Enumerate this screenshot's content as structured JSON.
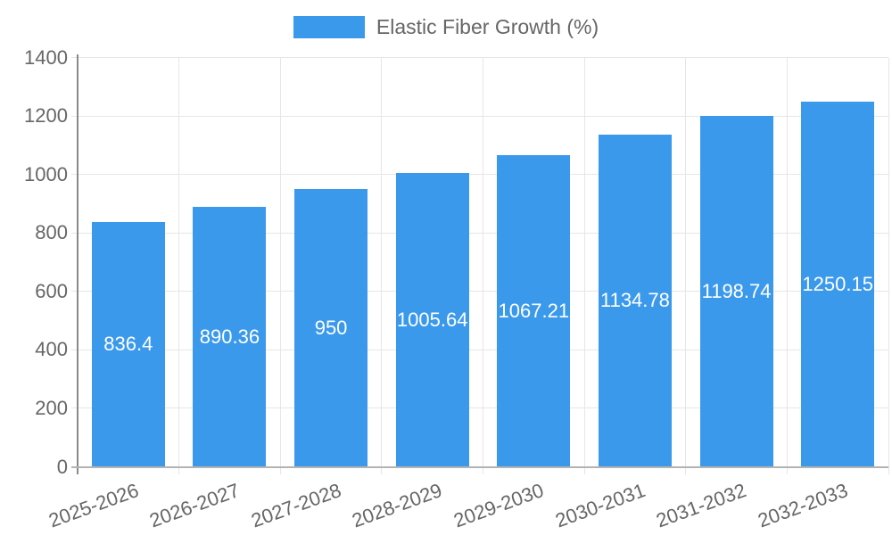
{
  "chart_data": {
    "type": "bar",
    "title": "Elastic Fiber Growth (%)",
    "legend_position": "top",
    "categories": [
      "2025-2026",
      "2026-2027",
      "2027-2028",
      "2028-2029",
      "2029-2030",
      "2030-2031",
      "2031-2032",
      "2032-2033"
    ],
    "series": [
      {
        "name": "Elastic Fiber Growth (%)",
        "values": [
          836.4,
          890.36,
          950,
          1005.64,
          1067.21,
          1134.78,
          1198.74,
          1250.15
        ]
      }
    ],
    "value_labels": [
      "836.4",
      "890.36",
      "950",
      "1005.64",
      "1067.21",
      "1134.78",
      "1198.74",
      "1250.15"
    ],
    "xlabel": "",
    "ylabel": "",
    "ylim": [
      0,
      1400
    ],
    "yticks": [
      0,
      200,
      400,
      600,
      800,
      1000,
      1200,
      1400
    ],
    "grid": true
  },
  "colors": {
    "bar": "#3b99ec",
    "grid": "#e6e6e6",
    "axis_y": "#8a8a8a",
    "axis_x": "#b3b3b3",
    "tick": "#d9d9d9",
    "text": "#666666",
    "bar_label": "#ffffff",
    "background": "#ffffff"
  }
}
